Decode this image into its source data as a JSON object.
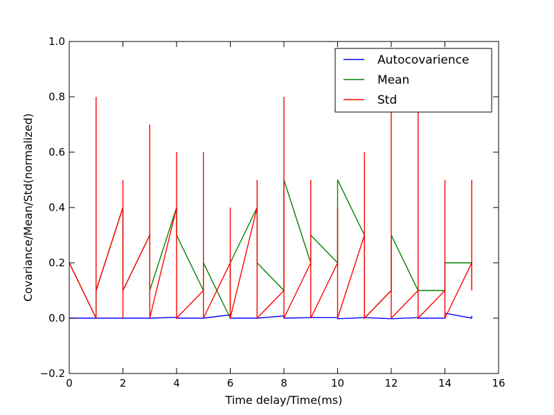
{
  "chart_data": {
    "type": "line",
    "title": "",
    "xlabel": "Time delay/Time(ms)",
    "ylabel": "Covariance/Mean/Std(normalized)",
    "xlim": [
      0,
      16
    ],
    "ylim": [
      -0.2,
      1.0
    ],
    "xticks": [
      0,
      2,
      4,
      6,
      8,
      10,
      12,
      14,
      16
    ],
    "yticks": [
      -0.2,
      0.0,
      0.2,
      0.4,
      0.6,
      0.8,
      1.0
    ],
    "xtick_labels": [
      "0",
      "2",
      "4",
      "6",
      "8",
      "10",
      "12",
      "14",
      "16"
    ],
    "ytick_labels": [
      "−0.2",
      "0.0",
      "0.2",
      "0.4",
      "0.6",
      "0.8",
      "1.0"
    ],
    "grid": false,
    "legend_position": "top-right",
    "series": [
      {
        "name": "Autocovarience",
        "color": "#0000ff",
        "x": [
          0,
          1,
          2,
          3,
          4,
          4,
          5,
          6,
          6,
          7,
          8,
          8,
          9,
          10,
          10,
          11,
          12,
          13,
          13,
          14,
          14,
          15,
          15
        ],
        "y": [
          0,
          0,
          0,
          0,
          0.003,
          0,
          0,
          0.012,
          0,
          0,
          0.008,
          0,
          0.002,
          0.002,
          -0.002,
          0.002,
          -0.002,
          0.002,
          0,
          0,
          0.018,
          0,
          0.008
        ]
      },
      {
        "name": "Mean",
        "color": "#008000",
        "x": [
          0,
          1,
          1,
          2,
          2,
          3,
          3,
          4,
          4,
          5,
          5,
          6,
          6,
          7,
          7,
          8,
          8,
          9,
          9,
          10,
          10,
          11,
          11,
          12,
          12,
          13,
          13,
          14,
          14,
          15,
          15
        ],
        "y": [
          0.2,
          0,
          0.1,
          0.4,
          0.1,
          0.3,
          0.1,
          0.4,
          0.3,
          0.1,
          0.2,
          0,
          0.2,
          0.4,
          0.2,
          0.1,
          0.5,
          0.2,
          0.3,
          0.2,
          0.5,
          0.3,
          0,
          0.1,
          0.3,
          0.1,
          0.1,
          0.1,
          0.2,
          0.2,
          0.1
        ]
      },
      {
        "name": "Std",
        "color": "#ff0000",
        "x": [
          0,
          1,
          1,
          1,
          1,
          2,
          2,
          2,
          2,
          2,
          3,
          3,
          3,
          3,
          4,
          4,
          4,
          4,
          5,
          5,
          5,
          5,
          6,
          6,
          6,
          6,
          7,
          7,
          7,
          7,
          8,
          8,
          8,
          8,
          9,
          9,
          9,
          9,
          10,
          10,
          10,
          10,
          11,
          11,
          11,
          11,
          12,
          12,
          12,
          12,
          13,
          13,
          13,
          13,
          14,
          14,
          14,
          14,
          15,
          15,
          15
        ],
        "y": [
          0.2,
          0,
          0.8,
          0,
          0.1,
          0.4,
          0,
          0.5,
          0,
          0.1,
          0.3,
          0,
          0.7,
          0,
          0.4,
          0,
          0.6,
          0,
          0.1,
          0,
          0.6,
          0,
          0.2,
          0,
          0.4,
          0,
          0.4,
          0,
          0.5,
          0,
          0.1,
          0,
          0.8,
          0,
          0.2,
          0,
          0.5,
          0,
          0.2,
          0,
          0.4,
          0,
          0.3,
          0,
          0.6,
          0,
          0.1,
          0,
          0.75,
          0,
          0.1,
          0,
          0.75,
          0,
          0.1,
          0,
          0.5,
          0,
          0.2,
          0.5,
          0.1
        ]
      }
    ]
  }
}
